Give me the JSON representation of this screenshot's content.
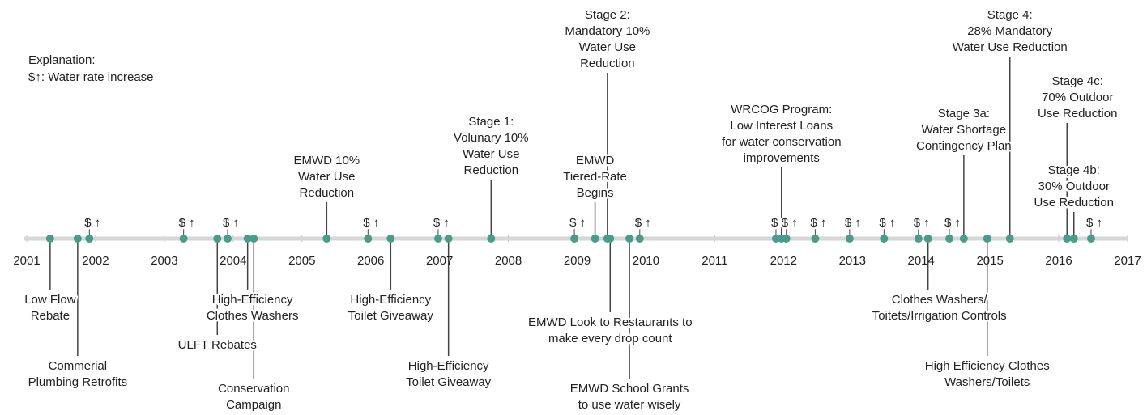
{
  "chart_data": {
    "type": "timeline",
    "explanation": [
      "Explanation:",
      "$↑: Water rate increase"
    ],
    "xlim": [
      2001,
      2017
    ],
    "xticks": [
      2001,
      2002,
      2003,
      2004,
      2005,
      2006,
      2007,
      2008,
      2009,
      2010,
      2011,
      2012,
      2013,
      2014,
      2015,
      2016,
      2017
    ],
    "color": "#4a9a8e",
    "events": [
      {
        "x": 2001.34,
        "side": "below",
        "label": [
          "Low Flow",
          "Rebate"
        ]
      },
      {
        "x": 2001.74,
        "side": "below",
        "label": [
          "Commerial",
          "Plumbing Retrofits"
        ]
      },
      {
        "x": 2003.77,
        "side": "below",
        "label": [
          "ULFT Rebates"
        ]
      },
      {
        "x": 2004.21,
        "side": "below",
        "label": [
          "High-Efficiency",
          "Clothes Washers"
        ]
      },
      {
        "x": 2004.3,
        "side": "below",
        "label": [
          "Conservation",
          "Campaign"
        ]
      },
      {
        "x": 2005.36,
        "side": "above",
        "label": [
          "EMWD 10%",
          "Water Use",
          "Reduction"
        ]
      },
      {
        "x": 2006.29,
        "side": "below",
        "label": [
          "High-Efficiency",
          "Toilet Giveaway"
        ]
      },
      {
        "x": 2007.13,
        "side": "below",
        "label": [
          "High-Efficiency",
          "Toilet Giveaway"
        ]
      },
      {
        "x": 2007.75,
        "side": "above",
        "label": [
          "Stage 1:",
          "Volunary 10%",
          "Water Use",
          "Reduction"
        ]
      },
      {
        "x": 2009.26,
        "side": "above",
        "label": [
          "EMWD",
          "Tiered-Rate",
          "Begins"
        ]
      },
      {
        "x": 2009.44,
        "side": "above",
        "label": [
          "Stage 2:",
          "Mandatory 10%",
          "Water Use",
          "Reduction"
        ]
      },
      {
        "x": 2009.48,
        "side": "below",
        "label": [
          "EMWD Look to Restaurants to",
          "make every drop count"
        ]
      },
      {
        "x": 2009.76,
        "side": "below",
        "label": [
          "EMWD School Grants",
          "to use water wisely"
        ]
      },
      {
        "x": 2011.97,
        "side": "above",
        "label": [
          "WRCOG Program:",
          "Low Interest Loans",
          "for water conservation",
          "improvements"
        ]
      },
      {
        "x": 2014.1,
        "side": "below",
        "label": [
          "Clothes Washers/",
          "Toitets/Irrigation Controls"
        ]
      },
      {
        "x": 2014.62,
        "side": "above",
        "label": [
          "Stage 3a:",
          "Water Shortage",
          "Contingency Plan"
        ]
      },
      {
        "x": 2014.96,
        "side": "below",
        "label": [
          "High Efficiency Clothes",
          "Washers/Toilets"
        ]
      },
      {
        "x": 2015.29,
        "side": "above",
        "label": [
          "Stage 4:",
          "28% Mandatory",
          "Water Use Reduction"
        ]
      },
      {
        "x": 2016.12,
        "side": "above",
        "label": [
          "Stage 4c:",
          "70% Outdoor",
          "Use Reduction"
        ]
      },
      {
        "x": 2016.22,
        "side": "above",
        "label": [
          "Stage 4b:",
          "30% Outdoor",
          "Use Reduction"
        ]
      }
    ],
    "rate_increases": {
      "label": "$ ↑",
      "x": [
        2001.91,
        2003.28,
        2003.92,
        2005.96,
        2006.98,
        2008.96,
        2009.91,
        2011.89,
        2012.04,
        2012.46,
        2012.96,
        2013.46,
        2013.96,
        2014.41,
        2016.47
      ]
    }
  }
}
